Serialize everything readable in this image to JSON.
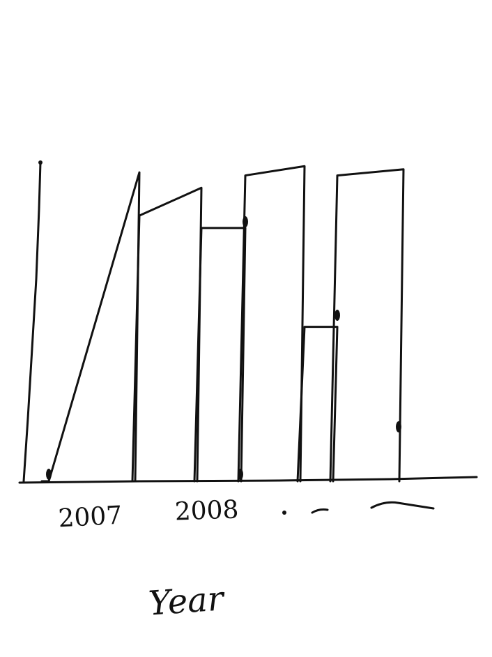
{
  "chart_data": {
    "type": "bar",
    "xlabel": "Year",
    "ylabel": "",
    "tick_labels": [
      "2007",
      "2008"
    ],
    "unlabeled_ticks": 2,
    "bars": [
      {
        "left": 0.0,
        "right": 1.0
      },
      {
        "left": 0.86,
        "right": 0.95
      },
      {
        "left": 0.82,
        "right": 0.82
      },
      {
        "left": 0.99,
        "right": 1.02
      },
      {
        "left": 0.5,
        "right": 0.5
      },
      {
        "left": 0.99,
        "right": 1.01
      }
    ],
    "ylim": [
      0,
      1.05
    ],
    "grid": false,
    "legend": "none",
    "style": "hand-drawn"
  }
}
